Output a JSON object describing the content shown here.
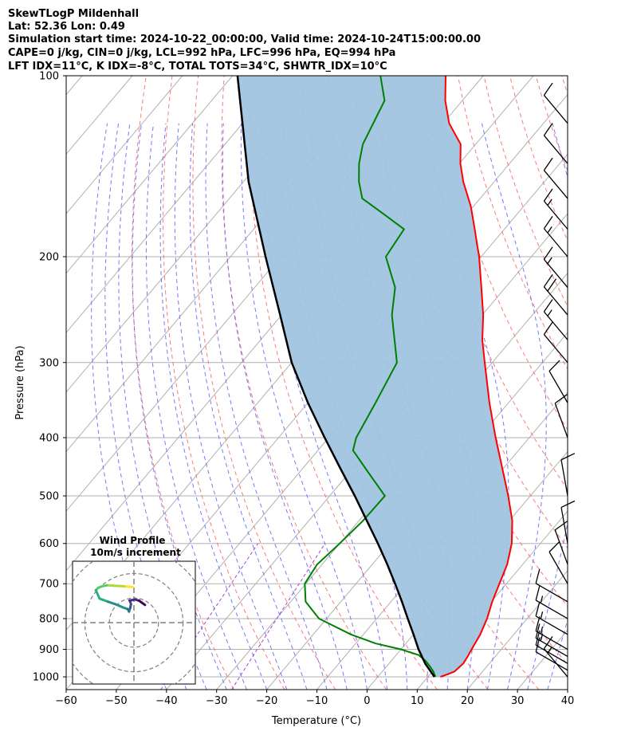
{
  "title_lines": [
    "SkewTLogP Mildenhall",
    "Lat: 52.36   Lon: 0.49",
    "Simulation start time: 2024-10-22_00:00:00, Valid time: 2024-10-24T15:00:00.00",
    "CAPE=0 j/kg, CIN=0 j/kg, LCL=992 hPa, LFC=996 hPa, EQ=994 hPa",
    "LFT IDX=11°C, K IDX=-8°C, TOTAL TOTS=34°C, SHWTR_IDX=10°C"
  ],
  "chart_data": {
    "type": "line",
    "subtype": "skew-t log-p",
    "xlabel": "Temperature (°C)",
    "ylabel": "Pressure (hPa)",
    "xlim": [
      -60,
      40
    ],
    "ylim": [
      1050,
      100
    ],
    "y_scale": "log",
    "x_ticks": [
      -60,
      -50,
      -40,
      -30,
      -20,
      -10,
      0,
      10,
      20,
      30,
      40
    ],
    "x_tick_labels": [
      "−60",
      "−50",
      "−40",
      "−30",
      "−20",
      "−10",
      "0",
      "10",
      "20",
      "30",
      "40"
    ],
    "y_ticks": [
      1000,
      900,
      800,
      700,
      600,
      500,
      400,
      300,
      200,
      100
    ],
    "y_tick_labels": [
      "1000",
      "900",
      "800",
      "700",
      "600",
      "500",
      "400",
      "300",
      "200",
      "100"
    ],
    "grid": true,
    "colors": {
      "temperature": "#ff0000",
      "dewpoint": "#008000",
      "parcel": "#000000",
      "cape_shading": "#a0c4e0",
      "dry_adiabats": "#ff6060",
      "moist_adiabats": "#6060ff",
      "mixing_ratio": "#9b30c9",
      "isotherm_grid": "#b0b0b0"
    },
    "series": [
      {
        "key": "temperature",
        "p": [
          1000,
          990,
          980,
          950,
          925,
          900,
          850,
          800,
          750,
          700,
          650,
          600,
          550,
          500,
          450,
          400,
          350,
          300,
          275,
          250,
          225,
          200,
          190,
          180,
          165,
          150,
          140,
          130,
          120,
          110,
          100
        ],
        "t": [
          12.5,
          13.5,
          14.4,
          14.8,
          14.5,
          14.1,
          13.3,
          12.0,
          10.2,
          8.6,
          6.9,
          4.3,
          0.6,
          -4.4,
          -10.2,
          -16.7,
          -23.8,
          -31.5,
          -35.8,
          -39.8,
          -44.8,
          -50.4,
          -53.1,
          -55.9,
          -60.5,
          -66.2,
          -69.8,
          -73.0,
          -78.8,
          -83.4,
          -87.5
        ]
      },
      {
        "key": "dewpoint",
        "p": [
          1000,
          980,
          960,
          940,
          920,
          900,
          880,
          850,
          800,
          750,
          700,
          650,
          600,
          550,
          500,
          450,
          420,
          400,
          350,
          300,
          250,
          225,
          200,
          180,
          170,
          160,
          150,
          140,
          130,
          110,
          100
        ],
        "t": [
          11.5,
          10.2,
          8.6,
          6.8,
          4.5,
          0.0,
          -6.0,
          -12.5,
          -21.5,
          -27.0,
          -30.2,
          -31.0,
          -30.0,
          -29.2,
          -29.0,
          -37.5,
          -43.0,
          -44.5,
          -46.5,
          -49.0,
          -58.0,
          -62.0,
          -69.0,
          -70.0,
          -76.5,
          -83.5,
          -87.0,
          -90.0,
          -92.5,
          -95.5,
          -100.5
        ]
      },
      {
        "key": "parcel",
        "p": [
          1000,
          950,
          900,
          850,
          800,
          750,
          700,
          650,
          600,
          550,
          500,
          450,
          400,
          350,
          300,
          250,
          200,
          150,
          100
        ],
        "t": [
          11.3,
          7.2,
          3.5,
          0.0,
          -3.8,
          -7.8,
          -12.2,
          -17.0,
          -22.4,
          -28.4,
          -35.0,
          -42.5,
          -50.8,
          -60.0,
          -70.0,
          -80.3,
          -93.0,
          -109.0,
          -129.0
        ]
      }
    ],
    "wind_barbs": [
      {
        "p": 1000,
        "speed_kt": 15,
        "dir_deg": 320
      },
      {
        "p": 975,
        "speed_kt": 10,
        "dir_deg": 300
      },
      {
        "p": 950,
        "speed_kt": 10,
        "dir_deg": 300
      },
      {
        "p": 925,
        "speed_kt": 15,
        "dir_deg": 300
      },
      {
        "p": 900,
        "speed_kt": 15,
        "dir_deg": 300
      },
      {
        "p": 850,
        "speed_kt": 15,
        "dir_deg": 300
      },
      {
        "p": 800,
        "speed_kt": 15,
        "dir_deg": 300
      },
      {
        "p": 750,
        "speed_kt": 10,
        "dir_deg": 300
      },
      {
        "p": 700,
        "speed_kt": 10,
        "dir_deg": 330
      },
      {
        "p": 650,
        "speed_kt": 10,
        "dir_deg": 340
      },
      {
        "p": 600,
        "speed_kt": 10,
        "dir_deg": 350
      },
      {
        "p": 500,
        "speed_kt": 10,
        "dir_deg": 350
      },
      {
        "p": 400,
        "speed_kt": 10,
        "dir_deg": 340
      },
      {
        "p": 350,
        "speed_kt": 10,
        "dir_deg": 330
      },
      {
        "p": 300,
        "speed_kt": 10,
        "dir_deg": 320
      },
      {
        "p": 275,
        "speed_kt": 15,
        "dir_deg": 320
      },
      {
        "p": 250,
        "speed_kt": 20,
        "dir_deg": 320
      },
      {
        "p": 225,
        "speed_kt": 15,
        "dir_deg": 320
      },
      {
        "p": 200,
        "speed_kt": 15,
        "dir_deg": 320
      },
      {
        "p": 180,
        "speed_kt": 15,
        "dir_deg": 320
      },
      {
        "p": 160,
        "speed_kt": 10,
        "dir_deg": 320
      },
      {
        "p": 140,
        "speed_kt": 10,
        "dir_deg": 320
      },
      {
        "p": 120,
        "speed_kt": 10,
        "dir_deg": 320
      }
    ],
    "hodograph": {
      "title": "Wind Profile",
      "subtitle": "10m/s increment",
      "u": [
        -0.5,
        -2.0,
        -4.0,
        -8.0,
        -11.0,
        -13.0,
        -14.5,
        -15.5,
        -14.0,
        -10.5,
        -7.5,
        -4.5,
        -2.5,
        -2.0,
        -1.5,
        -1.2,
        -1.5,
        -1.8,
        0.5,
        2.0,
        3.0,
        4.5
      ],
      "v": [
        14.5,
        14.6,
        14.8,
        15.0,
        15.2,
        14.8,
        14.2,
        13.2,
        9.8,
        8.5,
        7.5,
        6.2,
        5.5,
        4.5,
        6.0,
        7.5,
        8.5,
        9.0,
        9.4,
        9.0,
        8.3,
        7.2
      ],
      "ring_radii_ms": [
        10,
        20,
        30
      ],
      "lim": [
        -25,
        25
      ]
    }
  }
}
